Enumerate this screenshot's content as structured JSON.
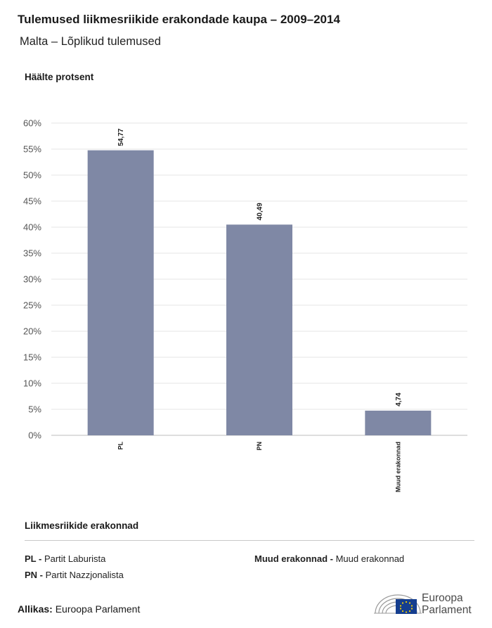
{
  "title": "Tulemused liikmesriikide erakondade kaupa – 2009–2014",
  "subtitle": "Malta – Lõplikud tulemused",
  "chart_data": {
    "type": "bar",
    "title": "Tulemused liikmesriikide erakondade kaupa – 2009–2014",
    "ylabel": "Häälte protsent",
    "xlabel": "",
    "categories": [
      "PL",
      "PN",
      "Muud  erakonnad"
    ],
    "values": [
      54.77,
      40.49,
      4.74
    ],
    "value_labels": [
      "54,77",
      "40,49",
      "4,74"
    ],
    "ylim": [
      0,
      60
    ],
    "yticks": [
      "0%",
      "5%",
      "10%",
      "15%",
      "20%",
      "25%",
      "30%",
      "35%",
      "40%",
      "45%",
      "50%",
      "55%",
      "60%"
    ],
    "grid": true,
    "bar_color": "#7f88a5"
  },
  "legend": {
    "title": "Liikmesriikide erakonnad",
    "items": [
      {
        "abbr": "PL -",
        "name": "Partit Laburista"
      },
      {
        "abbr": "PN -",
        "name": "Partit Nazzjonalista"
      },
      {
        "abbr": "Muud erakonnad -",
        "name": "Muud erakonnad"
      }
    ]
  },
  "source": {
    "label": "Allikas:",
    "value": "Euroopa Parlament"
  },
  "logo": {
    "line1": "Euroopa",
    "line2": "Parlament"
  }
}
